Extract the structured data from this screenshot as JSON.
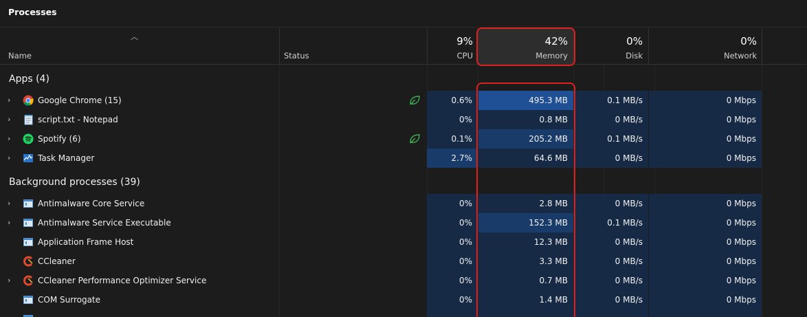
{
  "title": "Processes",
  "columns": {
    "name": "Name",
    "status": "Status",
    "cpu": {
      "pct": "9%",
      "label": "CPU"
    },
    "memory": {
      "pct": "42%",
      "label": "Memory"
    },
    "disk": {
      "pct": "0%",
      "label": "Disk"
    },
    "network": {
      "pct": "0%",
      "label": "Network"
    }
  },
  "apps_label": "Apps (4)",
  "apps": [
    {
      "name": "Google Chrome (15)",
      "cpu": "0.6%",
      "memory": "495.3 MB",
      "disk": "0.1 MB/s",
      "network": "0 Mbps"
    },
    {
      "name": "script.txt - Notepad",
      "cpu": "0%",
      "memory": "0.8 MB",
      "disk": "0 MB/s",
      "network": "0 Mbps"
    },
    {
      "name": "Spotify (6)",
      "cpu": "0.1%",
      "memory": "205.2 MB",
      "disk": "0.1 MB/s",
      "network": "0 Mbps"
    },
    {
      "name": "Task Manager",
      "cpu": "2.7%",
      "memory": "64.6 MB",
      "disk": "0 MB/s",
      "network": "0 Mbps"
    }
  ],
  "background_label": "Background processes (39)",
  "background": [
    {
      "name": "Antimalware Core Service",
      "cpu": "0%",
      "memory": "2.8 MB",
      "disk": "0 MB/s",
      "network": "0 Mbps"
    },
    {
      "name": "Antimalware Service Executable",
      "cpu": "0%",
      "memory": "152.3 MB",
      "disk": "0.1 MB/s",
      "network": "0 Mbps"
    },
    {
      "name": "Application Frame Host",
      "cpu": "0%",
      "memory": "12.3 MB",
      "disk": "0 MB/s",
      "network": "0 Mbps"
    },
    {
      "name": "CCleaner",
      "cpu": "0%",
      "memory": "3.3 MB",
      "disk": "0 MB/s",
      "network": "0 Mbps"
    },
    {
      "name": "CCleaner Performance Optimizer Service",
      "cpu": "0%",
      "memory": "0.7 MB",
      "disk": "0 MB/s",
      "network": "0 Mbps"
    },
    {
      "name": "COM Surrogate",
      "cpu": "0%",
      "memory": "1.4 MB",
      "disk": "0 MB/s",
      "network": "0 Mbps"
    }
  ],
  "colors": {
    "highlight": "#e01f1f",
    "heat_low": "#172a45",
    "heat_mid": "#193b6a",
    "heat_high": "#1f4f94",
    "eco_leaf": "#3fae55"
  }
}
